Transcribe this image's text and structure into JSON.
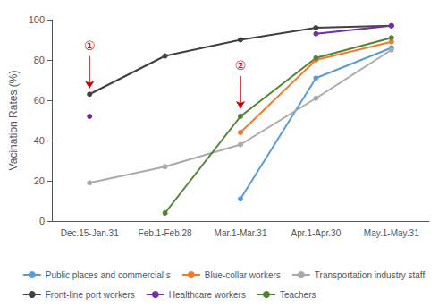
{
  "chart_data": {
    "type": "line",
    "categories": [
      "Dec.15-Jan.31",
      "Feb.1-Feb.28",
      "Mar.1-Mar.31",
      "Apr.1-Apr.30",
      "May.1-May.31"
    ],
    "series": [
      {
        "name": "Public places and commercial s",
        "color": "#5B9BD5",
        "values": [
          null,
          null,
          11,
          71,
          86
        ]
      },
      {
        "name": "Blue-collar workers",
        "color": "#ED7D31",
        "values": [
          null,
          null,
          44,
          80,
          89
        ]
      },
      {
        "name": "Transportation industry staff",
        "color": "#AAAAAA",
        "values": [
          19,
          27,
          38,
          61,
          85
        ]
      },
      {
        "name": "Front-line port workers",
        "color": "#404040",
        "values": [
          63,
          82,
          90,
          96,
          97
        ]
      },
      {
        "name": "Healthcare workers",
        "color": "#7030A0",
        "values": [
          52,
          null,
          null,
          93,
          97
        ]
      },
      {
        "name": "Teachers",
        "color": "#548235",
        "values": [
          null,
          4,
          52,
          81,
          91
        ]
      }
    ],
    "ylabel": "Vacination Rates (%)",
    "ylim": [
      0,
      100
    ],
    "yticks": [
      0,
      20,
      40,
      60,
      80,
      100
    ],
    "marker": "circle",
    "grid": false,
    "legend": "bottom",
    "annotations": [
      {
        "text": "①",
        "category": "Dec.15-Jan.31",
        "y": 82,
        "arrow_y": 66,
        "color": "#CC0000"
      },
      {
        "text": "②",
        "category": "Mar.1-Mar.31",
        "y": 72,
        "arrow_y": 56,
        "color": "#CC0000"
      }
    ]
  }
}
